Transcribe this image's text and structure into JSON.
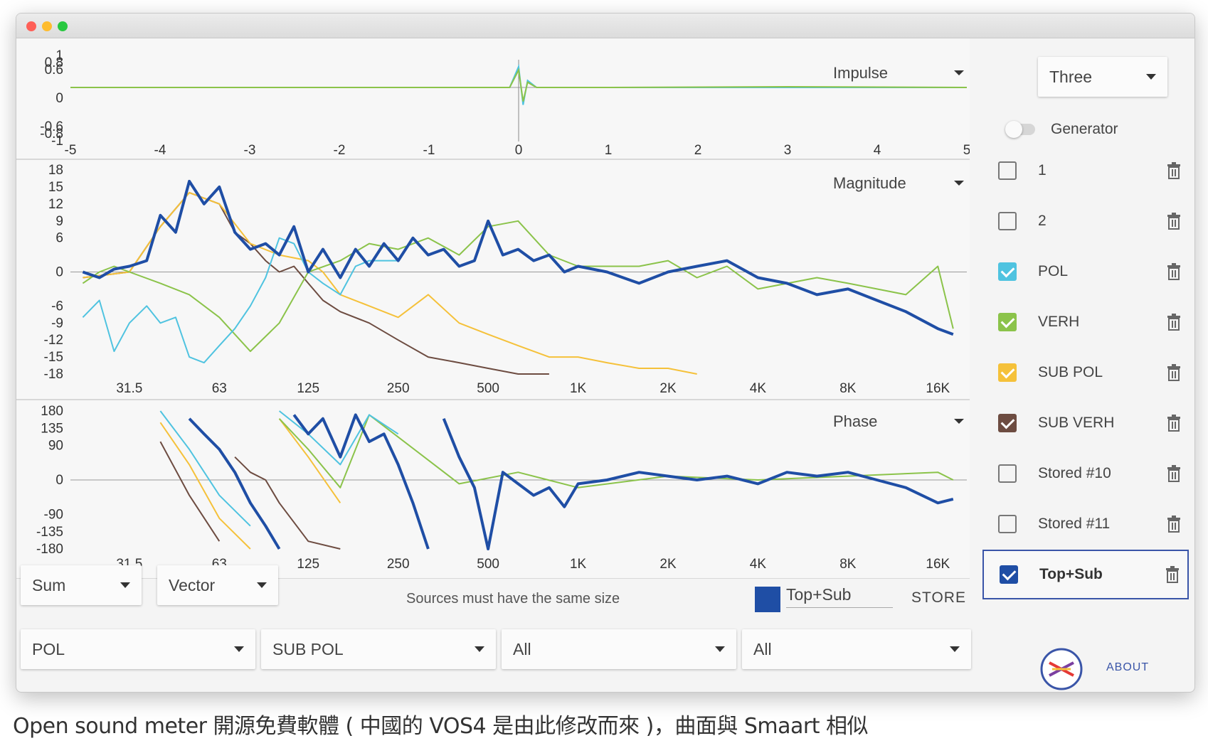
{
  "window": {
    "traffic_lights": [
      "close",
      "minimize",
      "zoom"
    ]
  },
  "plots": {
    "impulse": {
      "title": "Impulse",
      "y_ticks": [
        "1",
        "0.8",
        "0.6",
        "0",
        "-0.6",
        "-0.8",
        "-1"
      ],
      "x_ticks": [
        "-5",
        "-4",
        "-3",
        "-2",
        "-1",
        "0",
        "1",
        "2",
        "3",
        "4",
        "5"
      ]
    },
    "magnitude": {
      "title": "Magnitude",
      "y_ticks": [
        "18",
        "15",
        "12",
        "9",
        "6",
        "0",
        "-6",
        "-9",
        "-12",
        "-15",
        "-18"
      ],
      "x_ticks": [
        "31.5",
        "63",
        "125",
        "250",
        "500",
        "1K",
        "2K",
        "4K",
        "8K",
        "16K"
      ]
    },
    "phase": {
      "title": "Phase",
      "y_ticks": [
        "180",
        "135",
        "90",
        "0",
        "-90",
        "-135",
        "-180"
      ],
      "x_ticks": [
        "31.5",
        "63",
        "125",
        "250",
        "500",
        "1K",
        "2K",
        "4K",
        "8K",
        "16K"
      ]
    }
  },
  "chart_data": [
    {
      "type": "line",
      "title": "Impulse",
      "x_range": [
        -5,
        5
      ],
      "y_range": [
        -1,
        1
      ],
      "series": [
        {
          "name": "POL",
          "color": "#4fc3e0",
          "x": [
            -5,
            -1,
            -0.1,
            0,
            0.05,
            0.1,
            0.2,
            1,
            3,
            5
          ],
          "y": [
            0,
            0,
            0,
            0.6,
            -0.5,
            0.2,
            0,
            0,
            0,
            0
          ]
        },
        {
          "name": "VERH",
          "color": "#8bc34a",
          "x": [
            -5,
            -1,
            -0.1,
            0,
            0.05,
            0.1,
            0.2,
            1,
            3,
            5
          ],
          "y": [
            0,
            0,
            0,
            0.5,
            -0.4,
            0.15,
            0,
            0,
            0.02,
            0
          ]
        }
      ]
    },
    {
      "type": "line",
      "title": "Magnitude",
      "x_scale": "log",
      "x_range": [
        20,
        20000
      ],
      "y_range": [
        -18,
        18
      ],
      "series": [
        {
          "name": "Top+Sub",
          "color": "#1f4ea5",
          "x": [
            22,
            25,
            28,
            31.5,
            36,
            40,
            45,
            50,
            56,
            63,
            71,
            80,
            90,
            100,
            112,
            125,
            140,
            160,
            180,
            200,
            224,
            250,
            280,
            315,
            355,
            400,
            450,
            500,
            560,
            630,
            710,
            800,
            900,
            1000,
            1250,
            1600,
            2000,
            2500,
            3150,
            4000,
            5000,
            6300,
            8000,
            10000,
            12500,
            16000,
            18000
          ],
          "y": [
            0,
            -1,
            0.5,
            1,
            2,
            10,
            7,
            16,
            12,
            15,
            7,
            4,
            5,
            3,
            8,
            0,
            4,
            -1,
            4,
            1,
            5,
            2,
            6,
            3,
            4,
            1,
            2,
            9,
            3,
            4,
            2,
            3,
            0,
            1,
            0,
            -2,
            0,
            1,
            2,
            -1,
            -2,
            -4,
            -3,
            -5,
            -7,
            -10,
            -11
          ]
        },
        {
          "name": "POL",
          "color": "#4fc3e0",
          "x": [
            22,
            25,
            28,
            31.5,
            36,
            40,
            45,
            50,
            56,
            63,
            71,
            80,
            90,
            100,
            112,
            125,
            140,
            160,
            180,
            200,
            250
          ],
          "y": [
            -8,
            -5,
            -14,
            -9,
            -6,
            -9,
            -8,
            -15,
            -16,
            -13,
            -10,
            -6,
            -1,
            6,
            5,
            0,
            -2,
            -4,
            1,
            2,
            2
          ]
        },
        {
          "name": "VERH",
          "color": "#8bc34a",
          "x": [
            22,
            25,
            28,
            31.5,
            40,
            50,
            63,
            80,
            100,
            125,
            160,
            200,
            250,
            315,
            400,
            500,
            630,
            800,
            1000,
            1600,
            2000,
            2500,
            3150,
            4000,
            6300,
            8000,
            10000,
            12500,
            16000,
            18000
          ],
          "y": [
            -2,
            0,
            1,
            0,
            -2,
            -4,
            -8,
            -14,
            -9,
            0,
            2,
            5,
            4,
            6,
            3,
            8,
            9,
            3,
            1,
            1,
            2,
            -1,
            1,
            -3,
            -1,
            -2,
            -3,
            -4,
            1,
            -10
          ]
        },
        {
          "name": "SUB POL",
          "color": "#f5c13a",
          "x": [
            22,
            31.5,
            40,
            50,
            63,
            80,
            100,
            125,
            140,
            160,
            200,
            250,
            315,
            400,
            500,
            630,
            800,
            1000,
            1250,
            1600,
            2000,
            2500
          ],
          "y": [
            -1,
            0,
            8,
            14,
            12,
            5,
            3,
            2,
            0,
            -4,
            -6,
            -8,
            -4,
            -9,
            -11,
            -13,
            -15,
            -15,
            -16,
            -17,
            -17,
            -18
          ]
        },
        {
          "name": "SUB VERH",
          "color": "#6d4c41",
          "x": [
            22,
            31.5,
            40,
            50,
            63,
            71,
            80,
            90,
            100,
            112,
            125,
            140,
            160,
            200,
            250,
            315,
            400,
            500,
            630,
            800
          ],
          "y": [
            -1,
            0,
            8,
            14,
            12,
            7,
            5,
            2,
            0,
            1,
            -2,
            -5,
            -7,
            -9,
            -12,
            -15,
            -16,
            -17,
            -18,
            -18
          ]
        }
      ]
    },
    {
      "type": "line",
      "title": "Phase",
      "x_scale": "log",
      "x_range": [
        20,
        20000
      ],
      "y_range": [
        -180,
        180
      ],
      "series": [
        {
          "name": "Top+Sub",
          "color": "#1f4ea5",
          "x": [
            50,
            56,
            63,
            71,
            80,
            90,
            100,
            112,
            125,
            140,
            160,
            180,
            200,
            224,
            250,
            280,
            315,
            355,
            400,
            450,
            500,
            560,
            630,
            710,
            800,
            900,
            1000,
            1250,
            1600,
            2000,
            2500,
            3150,
            4000,
            5000,
            6300,
            8000,
            10000,
            12500,
            16000,
            18000
          ],
          "y": [
            160,
            120,
            80,
            20,
            -60,
            -120,
            -180,
            170,
            120,
            160,
            60,
            170,
            100,
            120,
            40,
            -60,
            -180,
            160,
            60,
            -20,
            -180,
            20,
            -10,
            -40,
            -20,
            -70,
            -10,
            0,
            20,
            10,
            0,
            10,
            -10,
            20,
            10,
            20,
            0,
            -20,
            -60,
            -50
          ]
        },
        {
          "name": "POL",
          "color": "#4fc3e0",
          "x": [
            40,
            50,
            63,
            80,
            100,
            125,
            160,
            200,
            250
          ],
          "y": [
            180,
            80,
            -40,
            -120,
            180,
            120,
            40,
            170,
            120
          ]
        },
        {
          "name": "VERH",
          "color": "#8bc34a",
          "x": [
            63,
            100,
            125,
            160,
            200,
            400,
            630,
            1000,
            2000,
            4000,
            8000,
            16000,
            18000
          ],
          "y": [
            -160,
            160,
            80,
            -20,
            170,
            -10,
            20,
            -20,
            10,
            0,
            10,
            20,
            0
          ]
        },
        {
          "name": "SUB POL",
          "color": "#f5c13a",
          "x": [
            40,
            50,
            63,
            80,
            100,
            125,
            160
          ],
          "y": [
            150,
            40,
            -100,
            -180,
            160,
            60,
            -60
          ]
        },
        {
          "name": "SUB VERH",
          "color": "#6d4c41",
          "x": [
            40,
            50,
            63,
            71,
            80,
            90,
            100,
            125,
            160
          ],
          "y": [
            100,
            -40,
            -160,
            60,
            20,
            0,
            -60,
            -160,
            -180
          ]
        }
      ]
    }
  ],
  "sidebar": {
    "layout_select": "Three",
    "generator_label": "Generator",
    "sources": [
      {
        "name": "1",
        "checked": false,
        "color": "#777777"
      },
      {
        "name": "2",
        "checked": false,
        "color": "#777777"
      },
      {
        "name": "POL",
        "checked": true,
        "color": "#4fc3e0"
      },
      {
        "name": "VERH",
        "checked": true,
        "color": "#8bc34a"
      },
      {
        "name": "SUB POL",
        "checked": true,
        "color": "#f5c13a"
      },
      {
        "name": "SUB VERH",
        "checked": true,
        "color": "#6d4c41"
      },
      {
        "name": "Stored #10",
        "checked": false,
        "color": "#777777"
      },
      {
        "name": "Stored #11",
        "checked": false,
        "color": "#777777"
      },
      {
        "name": "Top+Sub",
        "checked": true,
        "color": "#1f4ea5",
        "active": true
      }
    ],
    "about_label": "ABOUT"
  },
  "controls": {
    "operation_select": "Sum",
    "mode_select": "Vector",
    "message": "Sources must have the same size",
    "store_name": "Top+Sub",
    "store_color": "#1f4ea5",
    "store_label": "STORE",
    "source_a": "POL",
    "source_b": "SUB POL",
    "filter_a": "All",
    "filter_b": "All"
  },
  "caption": "Open sound meter 開源免費軟體 ( 中國的 VOS4 是由此修改而來 )，曲面與 Smaart 相似"
}
